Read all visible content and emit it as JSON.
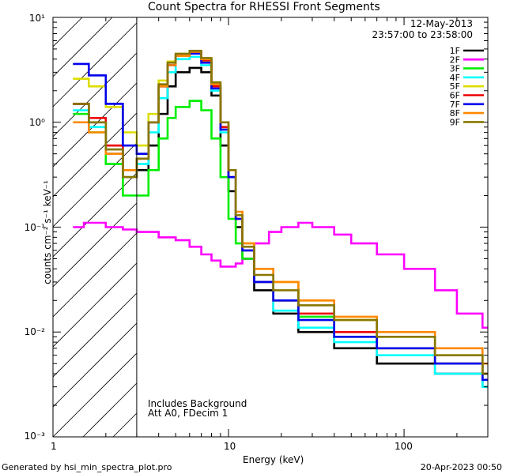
{
  "footer": {
    "generator": "Generated by hsi_min_spectra_plot.pro",
    "timestamp": "20-Apr-2023 00:50"
  },
  "chart_data": {
    "type": "line",
    "title": "Count Spectra for RHESSI Front Segments",
    "date": "12-May-2013",
    "time_range": "23:57:00 to 23:58:00",
    "xlabel": "Energy (keV)",
    "ylabel": "counts cm⁻² s⁻¹ keV⁻¹",
    "xscale": "log",
    "yscale": "log",
    "xlim": [
      1,
      300
    ],
    "ylim": [
      0.001,
      10
    ],
    "x_ticks": [
      "1",
      "10",
      "100"
    ],
    "y_ticks": [
      "10¹",
      "10⁰",
      "10⁻¹",
      "10⁻²",
      "10⁻³"
    ],
    "attenuator_cutoff_keV": 3,
    "annotations": [
      "Includes Background",
      "Att A0, FDecim 1"
    ],
    "legend_position": "top-right",
    "series": [
      {
        "name": "1F",
        "color": "#000000",
        "points": [
          [
            1.3,
            1.5
          ],
          [
            1.6,
            1.0
          ],
          [
            2.0,
            0.5
          ],
          [
            2.5,
            0.3
          ],
          [
            3,
            0.35
          ],
          [
            3.5,
            0.6
          ],
          [
            4,
            1.2
          ],
          [
            4.5,
            2.2
          ],
          [
            5,
            3.0
          ],
          [
            6,
            3.3
          ],
          [
            7,
            3.0
          ],
          [
            8,
            1.8
          ],
          [
            9,
            0.6
          ],
          [
            10,
            0.22
          ],
          [
            11,
            0.1
          ],
          [
            12,
            0.05
          ],
          [
            14,
            0.025
          ],
          [
            18,
            0.015
          ],
          [
            25,
            0.01
          ],
          [
            40,
            0.007
          ],
          [
            70,
            0.005
          ],
          [
            150,
            0.004
          ],
          [
            280,
            0.003
          ]
        ]
      },
      {
        "name": "2F",
        "color": "#ff00ff",
        "points": [
          [
            1.3,
            0.1
          ],
          [
            1.5,
            0.11
          ],
          [
            2,
            0.1
          ],
          [
            2.5,
            0.095
          ],
          [
            3,
            0.09
          ],
          [
            4,
            0.08
          ],
          [
            5,
            0.075
          ],
          [
            6,
            0.065
          ],
          [
            7,
            0.055
          ],
          [
            8,
            0.048
          ],
          [
            9,
            0.042
          ],
          [
            10,
            0.042
          ],
          [
            11,
            0.045
          ],
          [
            12,
            0.05
          ],
          [
            14,
            0.07
          ],
          [
            17,
            0.09
          ],
          [
            20,
            0.1
          ],
          [
            25,
            0.11
          ],
          [
            30,
            0.1
          ],
          [
            40,
            0.085
          ],
          [
            50,
            0.07
          ],
          [
            70,
            0.055
          ],
          [
            100,
            0.04
          ],
          [
            150,
            0.025
          ],
          [
            200,
            0.015
          ],
          [
            280,
            0.011
          ]
        ]
      },
      {
        "name": "3F",
        "color": "#00ee00",
        "points": [
          [
            1.3,
            1.2
          ],
          [
            1.6,
            0.8
          ],
          [
            2,
            0.4
          ],
          [
            2.5,
            0.2
          ],
          [
            3,
            0.2
          ],
          [
            3.5,
            0.35
          ],
          [
            4,
            0.7
          ],
          [
            4.5,
            1.1
          ],
          [
            5,
            1.4
          ],
          [
            6,
            1.6
          ],
          [
            7,
            1.3
          ],
          [
            8,
            0.7
          ],
          [
            9,
            0.3
          ],
          [
            10,
            0.12
          ],
          [
            11,
            0.07
          ],
          [
            12,
            0.05
          ],
          [
            14,
            0.03
          ],
          [
            18,
            0.02
          ],
          [
            25,
            0.014
          ],
          [
            40,
            0.009
          ],
          [
            70,
            0.007
          ],
          [
            150,
            0.005
          ],
          [
            280,
            0.004
          ]
        ]
      },
      {
        "name": "4F",
        "color": "#00ffff",
        "points": [
          [
            1.3,
            1.3
          ],
          [
            1.6,
            0.9
          ],
          [
            2,
            0.55
          ],
          [
            2.5,
            0.35
          ],
          [
            3,
            0.4
          ],
          [
            3.5,
            0.8
          ],
          [
            4,
            1.7
          ],
          [
            4.5,
            3.0
          ],
          [
            5,
            4.0
          ],
          [
            6,
            4.2
          ],
          [
            7,
            3.5
          ],
          [
            8,
            2.0
          ],
          [
            9,
            0.8
          ],
          [
            10,
            0.3
          ],
          [
            11,
            0.12
          ],
          [
            12,
            0.06
          ],
          [
            14,
            0.03
          ],
          [
            18,
            0.016
          ],
          [
            25,
            0.011
          ],
          [
            40,
            0.008
          ],
          [
            70,
            0.006
          ],
          [
            150,
            0.004
          ],
          [
            280,
            0.003
          ]
        ]
      },
      {
        "name": "5F",
        "color": "#dddd00",
        "points": [
          [
            1.3,
            2.6
          ],
          [
            1.6,
            2.2
          ],
          [
            2,
            1.4
          ],
          [
            2.5,
            0.8
          ],
          [
            3,
            0.6
          ],
          [
            3.5,
            1.2
          ],
          [
            4,
            2.5
          ],
          [
            4.5,
            3.8
          ],
          [
            5,
            4.5
          ],
          [
            6,
            4.6
          ],
          [
            7,
            3.8
          ],
          [
            8,
            2.2
          ],
          [
            9,
            0.9
          ],
          [
            10,
            0.3
          ],
          [
            11,
            0.12
          ],
          [
            12,
            0.07
          ],
          [
            14,
            0.04
          ],
          [
            18,
            0.03
          ],
          [
            25,
            0.02
          ],
          [
            40,
            0.013
          ],
          [
            70,
            0.009
          ],
          [
            150,
            0.006
          ],
          [
            280,
            0.004
          ]
        ]
      },
      {
        "name": "6F",
        "color": "#ee0000",
        "points": [
          [
            1.3,
            1.5
          ],
          [
            1.6,
            1.1
          ],
          [
            2,
            0.6
          ],
          [
            2.5,
            0.35
          ],
          [
            3,
            0.45
          ],
          [
            3.5,
            1.0
          ],
          [
            4,
            2.2
          ],
          [
            4.5,
            3.5
          ],
          [
            5,
            4.3
          ],
          [
            6,
            4.6
          ],
          [
            7,
            3.9
          ],
          [
            8,
            2.2
          ],
          [
            9,
            0.9
          ],
          [
            10,
            0.3
          ],
          [
            11,
            0.12
          ],
          [
            12,
            0.06
          ],
          [
            14,
            0.03
          ],
          [
            18,
            0.02
          ],
          [
            25,
            0.015
          ],
          [
            40,
            0.01
          ],
          [
            70,
            0.007
          ],
          [
            150,
            0.005
          ],
          [
            280,
            0.004
          ]
        ]
      },
      {
        "name": "7F",
        "color": "#0000ee",
        "points": [
          [
            1.3,
            3.6
          ],
          [
            1.6,
            2.8
          ],
          [
            2,
            1.5
          ],
          [
            2.5,
            0.6
          ],
          [
            3,
            0.5
          ],
          [
            3.5,
            1.0
          ],
          [
            4,
            2.2
          ],
          [
            4.5,
            3.5
          ],
          [
            5,
            4.3
          ],
          [
            6,
            4.5
          ],
          [
            7,
            3.7
          ],
          [
            8,
            2.1
          ],
          [
            9,
            0.85
          ],
          [
            10,
            0.3
          ],
          [
            11,
            0.12
          ],
          [
            12,
            0.06
          ],
          [
            14,
            0.03
          ],
          [
            18,
            0.02
          ],
          [
            25,
            0.013
          ],
          [
            40,
            0.009
          ],
          [
            70,
            0.007
          ],
          [
            150,
            0.005
          ],
          [
            280,
            0.0035
          ]
        ]
      },
      {
        "name": "8F",
        "color": "#ff8800",
        "points": [
          [
            1.3,
            1.0
          ],
          [
            1.6,
            0.8
          ],
          [
            2,
            0.5
          ],
          [
            2.5,
            0.35
          ],
          [
            3,
            0.45
          ],
          [
            3.5,
            1.0
          ],
          [
            4,
            2.2
          ],
          [
            4.5,
            3.5
          ],
          [
            5,
            4.3
          ],
          [
            6,
            4.7
          ],
          [
            7,
            4.0
          ],
          [
            8,
            2.3
          ],
          [
            9,
            1.0
          ],
          [
            10,
            0.35
          ],
          [
            11,
            0.14
          ],
          [
            12,
            0.07
          ],
          [
            14,
            0.04
          ],
          [
            18,
            0.03
          ],
          [
            25,
            0.02
          ],
          [
            40,
            0.014
          ],
          [
            70,
            0.01
          ],
          [
            150,
            0.007
          ],
          [
            280,
            0.005
          ]
        ]
      },
      {
        "name": "9F",
        "color": "#887700",
        "points": [
          [
            1.3,
            1.5
          ],
          [
            1.6,
            1.0
          ],
          [
            2,
            0.55
          ],
          [
            2.5,
            0.3
          ],
          [
            3,
            0.45
          ],
          [
            3.5,
            1.0
          ],
          [
            4,
            2.3
          ],
          [
            4.5,
            3.7
          ],
          [
            5,
            4.5
          ],
          [
            6,
            4.8
          ],
          [
            7,
            4.1
          ],
          [
            8,
            2.4
          ],
          [
            9,
            1.0
          ],
          [
            10,
            0.35
          ],
          [
            11,
            0.13
          ],
          [
            12,
            0.065
          ],
          [
            14,
            0.035
          ],
          [
            18,
            0.025
          ],
          [
            25,
            0.018
          ],
          [
            40,
            0.013
          ],
          [
            70,
            0.009
          ],
          [
            150,
            0.006
          ],
          [
            280,
            0.004
          ]
        ]
      }
    ]
  }
}
